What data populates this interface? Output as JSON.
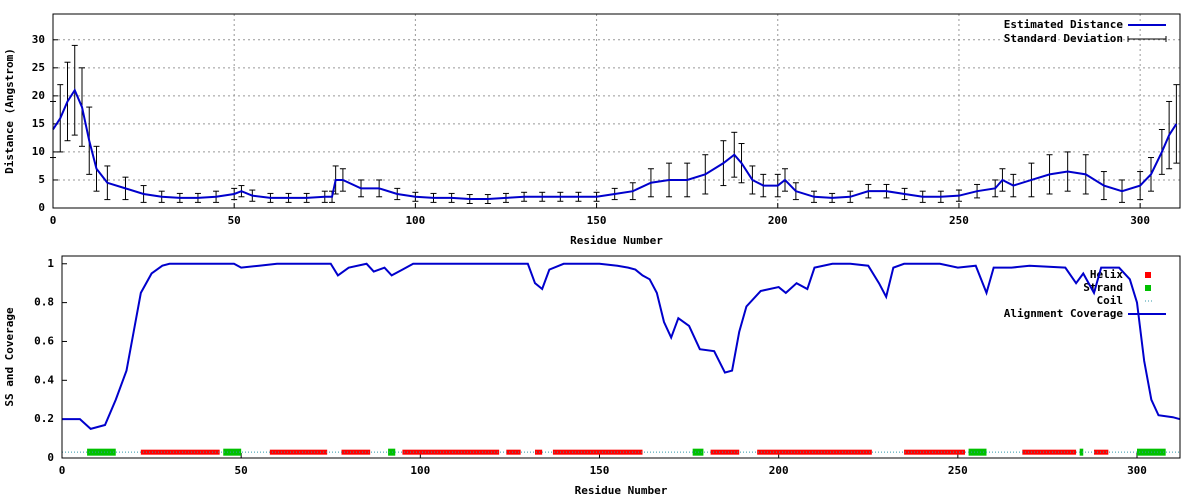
{
  "chart_data": [
    {
      "type": "line",
      "xlabel": "Residue Number",
      "ylabel": "Distance (Angstrom)",
      "xlim": [
        0,
        311
      ],
      "ylim": [
        0,
        34.6
      ],
      "xticks": [
        0,
        50,
        100,
        150,
        200,
        250,
        300
      ],
      "yticks": [
        0,
        5,
        10,
        15,
        20,
        25,
        30
      ],
      "grid": true,
      "x": [
        0,
        2,
        4,
        6,
        8,
        10,
        12,
        15,
        20,
        25,
        30,
        35,
        40,
        45,
        50,
        52,
        55,
        60,
        65,
        70,
        75,
        77,
        78,
        80,
        85,
        90,
        95,
        100,
        105,
        110,
        115,
        120,
        125,
        130,
        135,
        140,
        145,
        150,
        155,
        160,
        165,
        170,
        175,
        180,
        185,
        188,
        190,
        193,
        196,
        200,
        202,
        205,
        210,
        215,
        220,
        225,
        230,
        235,
        240,
        245,
        250,
        255,
        260,
        262,
        265,
        270,
        275,
        280,
        285,
        290,
        295,
        300,
        303,
        306,
        308,
        310
      ],
      "series": [
        {
          "name": "Estimated Distance",
          "color": "#0000cc",
          "values": [
            14,
            16,
            19,
            21,
            18,
            12,
            7,
            4.5,
            3.5,
            2.5,
            2,
            1.8,
            1.8,
            2,
            2.5,
            3,
            2.2,
            1.8,
            1.8,
            1.8,
            2,
            2,
            5,
            5,
            3.5,
            3.5,
            2.5,
            2,
            1.8,
            1.8,
            1.6,
            1.6,
            1.8,
            2,
            2,
            2,
            2,
            2,
            2.5,
            3,
            4.5,
            5,
            5,
            6,
            8,
            9.5,
            8,
            5,
            4,
            4,
            5,
            3,
            2,
            1.8,
            2,
            3,
            3,
            2.5,
            2,
            2,
            2.2,
            3,
            3.5,
            5,
            4,
            5,
            6,
            6.5,
            6,
            4,
            3,
            4,
            6,
            10,
            13,
            15
          ]
        },
        {
          "name": "Standard Deviation",
          "color": "#000000",
          "values": [
            5,
            6,
            7,
            8,
            7,
            6,
            4,
            3,
            2,
            1.5,
            1,
            0.8,
            0.8,
            1,
            1,
            1,
            1,
            0.8,
            0.8,
            0.8,
            1,
            1,
            2.5,
            2,
            1.5,
            1.5,
            1,
            0.8,
            0.8,
            0.8,
            0.8,
            0.8,
            0.8,
            0.8,
            0.8,
            0.8,
            0.8,
            0.8,
            1,
            1.5,
            2.5,
            3,
            3,
            3.5,
            4,
            4,
            3.5,
            2.5,
            2,
            2,
            2,
            1.5,
            1,
            0.8,
            1,
            1.2,
            1.2,
            1,
            1,
            1,
            1,
            1.2,
            1.5,
            2,
            2,
            3,
            3.5,
            3.5,
            3.5,
            2.5,
            2,
            2.5,
            3,
            4,
            6,
            7
          ]
        }
      ],
      "legend": "top-right"
    },
    {
      "type": "line",
      "xlabel": "Residue Number",
      "ylabel": "SS and Coverage",
      "xlim": [
        0,
        312
      ],
      "ylim": [
        0,
        1.04
      ],
      "xticks": [
        0,
        50,
        100,
        150,
        200,
        250,
        300
      ],
      "yticks": [
        0,
        0.2,
        0.4,
        0.6,
        0.8,
        1
      ],
      "grid": false,
      "bands": [
        {
          "name": "Helix",
          "color": "#ff0000",
          "level": 0.03,
          "ranges": [
            [
              22,
              44
            ],
            [
              58,
              74
            ],
            [
              78,
              86
            ],
            [
              95,
              122
            ],
            [
              124,
              128
            ],
            [
              132,
              134
            ],
            [
              137,
              162
            ],
            [
              181,
              189
            ],
            [
              194,
              226
            ],
            [
              235,
              252
            ],
            [
              268,
              283
            ],
            [
              288,
              292
            ]
          ]
        },
        {
          "name": "Strand",
          "color": "#00c000",
          "level": 0.03,
          "ranges": [
            [
              7,
              15
            ],
            [
              45,
              50
            ],
            [
              91,
              93
            ],
            [
              176,
              179
            ],
            [
              253,
              258
            ],
            [
              284,
              285
            ],
            [
              300,
              308
            ]
          ]
        },
        {
          "name": "Coil",
          "color": "#3399aa",
          "level": 0.03,
          "ranges": [
            [
              0,
              312
            ]
          ]
        }
      ],
      "x": [
        0,
        5,
        8,
        12,
        15,
        18,
        20,
        22,
        25,
        28,
        30,
        40,
        48,
        50,
        55,
        60,
        70,
        75,
        77,
        80,
        85,
        87,
        90,
        92,
        95,
        98,
        110,
        125,
        130,
        132,
        134,
        136,
        140,
        150,
        155,
        158,
        160,
        162,
        164,
        166,
        168,
        170,
        172,
        175,
        178,
        182,
        185,
        187,
        189,
        191,
        195,
        200,
        202,
        205,
        208,
        210,
        215,
        220,
        225,
        228,
        230,
        232,
        235,
        245,
        250,
        255,
        258,
        260,
        265,
        270,
        280,
        283,
        285,
        288,
        290,
        295,
        298,
        300,
        302,
        304,
        306,
        310,
        312
      ],
      "series": [
        {
          "name": "Alignment Coverage",
          "color": "#0000cc",
          "values": [
            0.2,
            0.2,
            0.15,
            0.17,
            0.3,
            0.45,
            0.65,
            0.85,
            0.95,
            0.99,
            1,
            1,
            1,
            0.98,
            0.99,
            1,
            1,
            1,
            0.94,
            0.98,
            1,
            0.96,
            0.98,
            0.94,
            0.97,
            1,
            1,
            1,
            1,
            0.9,
            0.87,
            0.97,
            1,
            1,
            0.99,
            0.98,
            0.97,
            0.94,
            0.92,
            0.85,
            0.7,
            0.62,
            0.72,
            0.68,
            0.56,
            0.55,
            0.44,
            0.45,
            0.65,
            0.78,
            0.86,
            0.88,
            0.85,
            0.9,
            0.87,
            0.98,
            1,
            1,
            0.99,
            0.9,
            0.83,
            0.98,
            1,
            1,
            0.98,
            0.99,
            0.85,
            0.98,
            0.98,
            0.99,
            0.98,
            0.9,
            0.95,
            0.85,
            0.98,
            0.98,
            0.92,
            0.8,
            0.5,
            0.3,
            0.22,
            0.21,
            0.2
          ]
        }
      ],
      "legend": "top-right"
    }
  ]
}
